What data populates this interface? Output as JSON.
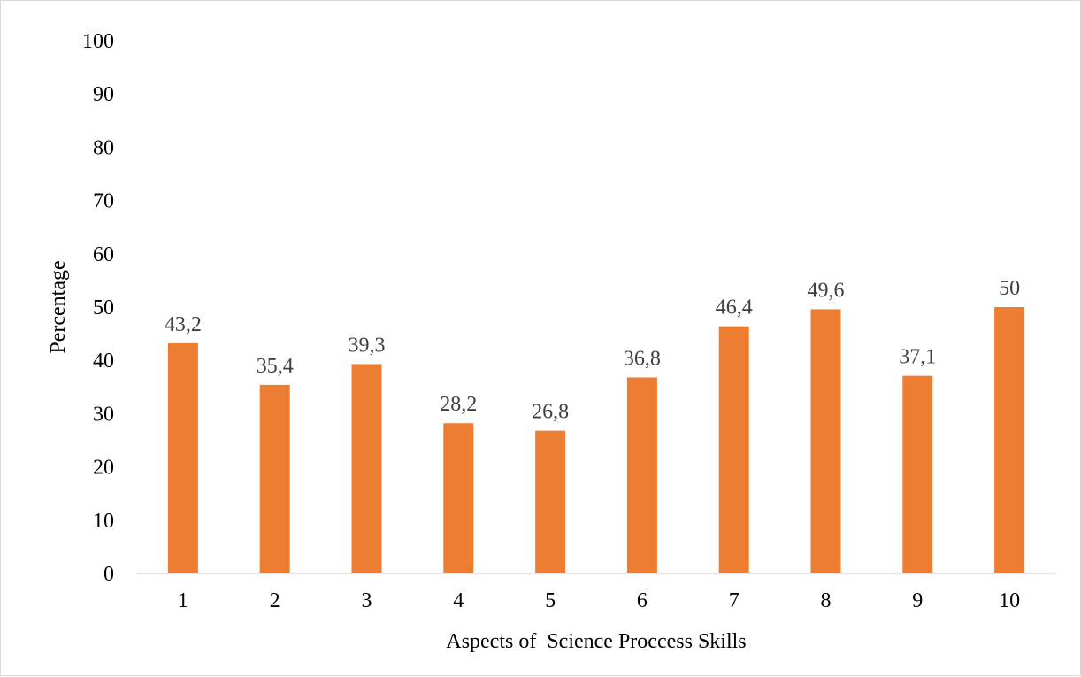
{
  "chart_data": {
    "type": "bar",
    "categories": [
      "1",
      "2",
      "3",
      "4",
      "5",
      "6",
      "7",
      "8",
      "9",
      "10"
    ],
    "values": [
      43.2,
      35.4,
      39.3,
      28.2,
      26.8,
      36.8,
      46.4,
      49.6,
      37.1,
      50
    ],
    "data_labels": [
      "43,2",
      "35,4",
      "39,3",
      "28,2",
      "26,8",
      "36,8",
      "46,4",
      "49,6",
      "37,1",
      "50"
    ],
    "xlabel": "Aspects of  Science Proccess Skills",
    "ylabel": "Percentage",
    "ylim": [
      0,
      100
    ],
    "yticks": [
      0,
      10,
      20,
      30,
      40,
      50,
      60,
      70,
      80,
      90,
      100
    ],
    "bar_color": "#ed7d31",
    "axis_color": "#d9d9d9",
    "grid": false,
    "legend": "none"
  }
}
